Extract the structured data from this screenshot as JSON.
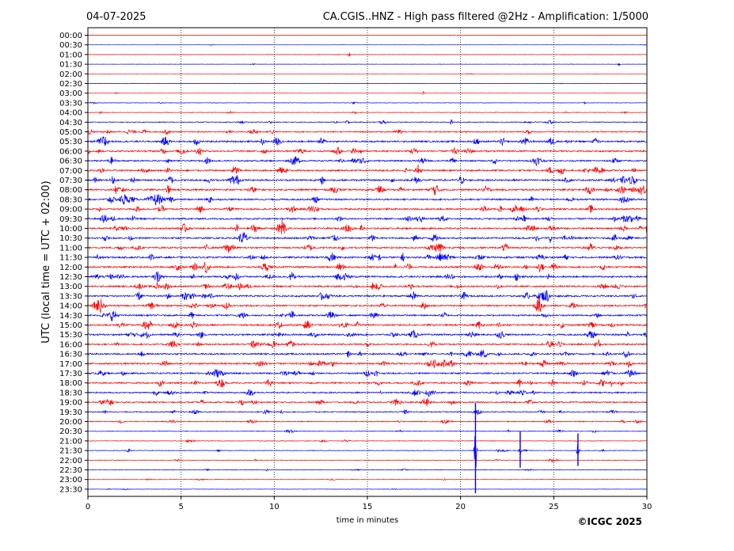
{
  "chart_data": {
    "type": "line",
    "title_left": "04-07-2025",
    "title": "CA.CGIS..HNZ - High pass filtered @2Hz - Amplification: 1/5000",
    "xlabel": "time in minutes",
    "ylabel": "UTC (local time = UTC + 02:00)",
    "copyright": "©ICGC 2025",
    "xlim": [
      0,
      30
    ],
    "x_ticks": [
      0,
      5,
      10,
      15,
      20,
      25,
      30
    ],
    "grid": "vertical dotted at every 5 minutes",
    "colors": {
      "odd_rows": "#ff0000",
      "even_rows": "#0000ff",
      "grid": "#000000"
    },
    "row_labels": [
      "00:00",
      "00:30",
      "01:00",
      "01:30",
      "02:00",
      "02:30",
      "03:00",
      "03:30",
      "04:00",
      "04:30",
      "05:00",
      "05:30",
      "06:00",
      "06:30",
      "07:00",
      "07:30",
      "08:00",
      "08:30",
      "09:00",
      "09:30",
      "10:00",
      "10:30",
      "11:00",
      "11:30",
      "12:00",
      "12:30",
      "13:00",
      "13:30",
      "14:00",
      "14:30",
      "15:00",
      "15:30",
      "16:00",
      "16:30",
      "17:00",
      "17:30",
      "18:00",
      "18:30",
      "19:00",
      "19:30",
      "20:00",
      "20:30",
      "21:00",
      "21:30",
      "22:00",
      "22:30",
      "23:00",
      "23:30"
    ],
    "noise_level": [
      0.04,
      0.04,
      0.05,
      0.05,
      0.04,
      0.04,
      0.06,
      0.1,
      0.12,
      0.18,
      0.28,
      0.38,
      0.36,
      0.34,
      0.38,
      0.4,
      0.4,
      0.38,
      0.36,
      0.38,
      0.38,
      0.38,
      0.36,
      0.4,
      0.38,
      0.4,
      0.38,
      0.38,
      0.36,
      0.36,
      0.38,
      0.38,
      0.36,
      0.36,
      0.38,
      0.36,
      0.34,
      0.32,
      0.3,
      0.24,
      0.2,
      0.14,
      0.12,
      0.14,
      0.12,
      0.12,
      0.1,
      0.08
    ],
    "events": [
      {
        "row": 2,
        "minute": 14.0,
        "amplitude": 0.9
      },
      {
        "row": 3,
        "minute": 28.5,
        "amplitude": 0.4
      },
      {
        "row": 6,
        "minute": 18.0,
        "amplitude": 0.4
      },
      {
        "row": 9,
        "minute": 19.5,
        "amplitude": 0.6
      },
      {
        "row": 11,
        "minute": 1.0,
        "amplitude": 0.7
      },
      {
        "row": 16,
        "minute": 1.5,
        "amplitude": 0.8
      },
      {
        "row": 20,
        "minute": 30.0,
        "amplitude": 1.0
      },
      {
        "row": 21,
        "minute": 24.8,
        "amplitude": 1.0
      },
      {
        "row": 24,
        "minute": 16.5,
        "amplitude": 0.8
      },
      {
        "row": 25,
        "minute": 24.7,
        "amplitude": 0.8
      },
      {
        "row": 28,
        "minute": 29.9,
        "amplitude": 0.8
      },
      {
        "row": 36,
        "minute": 28.1,
        "amplitude": 0.8
      },
      {
        "row": 43,
        "minute": 20.8,
        "amplitude": 5.0
      },
      {
        "row": 43,
        "minute": 23.2,
        "amplitude": 2.0
      },
      {
        "row": 43,
        "minute": 26.3,
        "amplitude": 1.8
      }
    ]
  }
}
